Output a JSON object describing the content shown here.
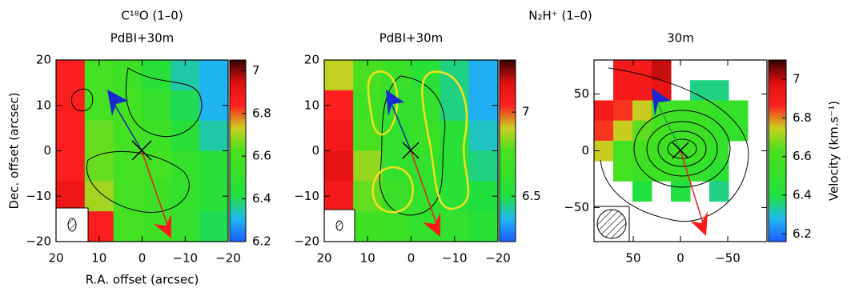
{
  "chart_data": [
    {
      "type": "heatmap",
      "title": "C¹⁸O (1–0)",
      "subtitle": "PdBI+30m",
      "x_label": "R.A. offset (arcsec)",
      "y_label": "Dec. offset (arcsec)",
      "xlim": [
        20,
        -20
      ],
      "ylim": [
        -20,
        20
      ],
      "xticks": [
        20,
        10,
        0,
        {
          "value": -10,
          "label": "−10"
        },
        {
          "value": -20,
          "label": "−20"
        }
      ],
      "yticks": [
        20,
        10,
        0,
        {
          "value": -10,
          "label": "−10"
        },
        {
          "value": -20,
          "label": "−20"
        }
      ],
      "clim": [
        6.2,
        7.05
      ],
      "cticks": [
        7,
        6.8,
        6.6,
        6.4,
        6.2
      ],
      "colormap": [
        "#1a5cff",
        "#20b8f0",
        "#20e040",
        "#38e028",
        "#48e020",
        "#c8d020",
        "#ff2020",
        "#e01010",
        "#300000"
      ],
      "z": [
        [
          6.85,
          6.6,
          6.55,
          6.45,
          6.35,
          6.3
        ],
        [
          6.85,
          6.6,
          6.6,
          6.5,
          6.4,
          6.3
        ],
        [
          6.85,
          6.65,
          6.6,
          6.55,
          6.45,
          6.35
        ],
        [
          6.85,
          6.65,
          6.6,
          6.6,
          6.5,
          6.45
        ],
        [
          6.9,
          6.7,
          6.6,
          6.55,
          6.5,
          6.45
        ],
        [
          6.9,
          6.85,
          6.6,
          6.55,
          6.5,
          6.4
        ]
      ]
    },
    {
      "type": "heatmap",
      "title": "N₂H⁺ (1–0)",
      "subtitle": "PdBI+30m",
      "xlim": [
        20,
        -20
      ],
      "ylim": [
        -20,
        20
      ],
      "xticks": [
        20,
        10,
        0,
        {
          "value": -10,
          "label": "−10"
        },
        {
          "value": -20,
          "label": "−20"
        }
      ],
      "yticks": [
        20,
        10,
        0,
        {
          "value": -10,
          "label": "−10"
        },
        {
          "value": -20,
          "label": "−20"
        }
      ],
      "clim": [
        6.23,
        7.31
      ],
      "cticks": [
        7,
        6.5
      ],
      "colormap": [
        "#1a5cff",
        "#20b8f0",
        "#20e040",
        "#38e028",
        "#48e020",
        "#c8d020",
        "#ff2020",
        "#e01010",
        "#300000"
      ],
      "z": [
        [
          6.9,
          6.75,
          6.65,
          6.55,
          6.45,
          6.35
        ],
        [
          7.05,
          6.7,
          6.6,
          6.6,
          6.45,
          6.35
        ],
        [
          7.1,
          6.75,
          6.6,
          6.65,
          6.55,
          6.4
        ],
        [
          7.15,
          6.85,
          6.6,
          6.6,
          6.55,
          6.45
        ],
        [
          7.1,
          6.8,
          6.65,
          6.6,
          6.55,
          6.5
        ],
        [
          7.0,
          6.7,
          6.65,
          6.6,
          6.6,
          6.55
        ]
      ]
    },
    {
      "type": "heatmap",
      "subtitle": "30m",
      "colorbar_label": "Velocity (km.s⁻¹)",
      "xlim": [
        91.5,
        -91.5
      ],
      "ylim": [
        -80,
        80
      ],
      "xticks": [
        50,
        0,
        {
          "value": -50,
          "label": "−50"
        }
      ],
      "yticks": [
        50,
        0,
        {
          "value": -50,
          "label": "−50"
        }
      ],
      "clim": [
        6.16,
        7.1
      ],
      "cticks": [
        7,
        6.8,
        6.6,
        6.4,
        6.2
      ],
      "colormap": [
        "#1a5cff",
        "#20b8f0",
        "#20e040",
        "#38e028",
        "#48e020",
        "#c8d020",
        "#ff2020",
        "#e01010",
        "#300000"
      ],
      "z": [
        [
          null,
          6.9,
          6.9,
          7.0,
          null,
          null,
          null,
          null,
          null
        ],
        [
          null,
          6.9,
          6.9,
          6.95,
          null,
          6.35,
          6.35,
          null,
          null
        ],
        [
          6.9,
          6.85,
          6.75,
          6.6,
          6.55,
          6.55,
          6.5,
          6.5,
          null
        ],
        [
          6.85,
          6.75,
          6.65,
          6.6,
          6.55,
          6.55,
          6.5,
          6.5,
          null
        ],
        [
          6.75,
          6.6,
          6.6,
          6.55,
          6.55,
          6.55,
          6.5,
          null,
          null
        ],
        [
          null,
          6.6,
          6.55,
          6.55,
          6.5,
          6.5,
          6.45,
          null,
          null
        ],
        [
          null,
          null,
          6.4,
          null,
          6.4,
          null,
          6.35,
          null,
          null
        ],
        [
          null,
          null,
          null,
          null,
          null,
          null,
          null,
          null,
          null
        ],
        [
          null,
          null,
          null,
          null,
          null,
          null,
          null,
          null,
          null
        ]
      ]
    }
  ]
}
